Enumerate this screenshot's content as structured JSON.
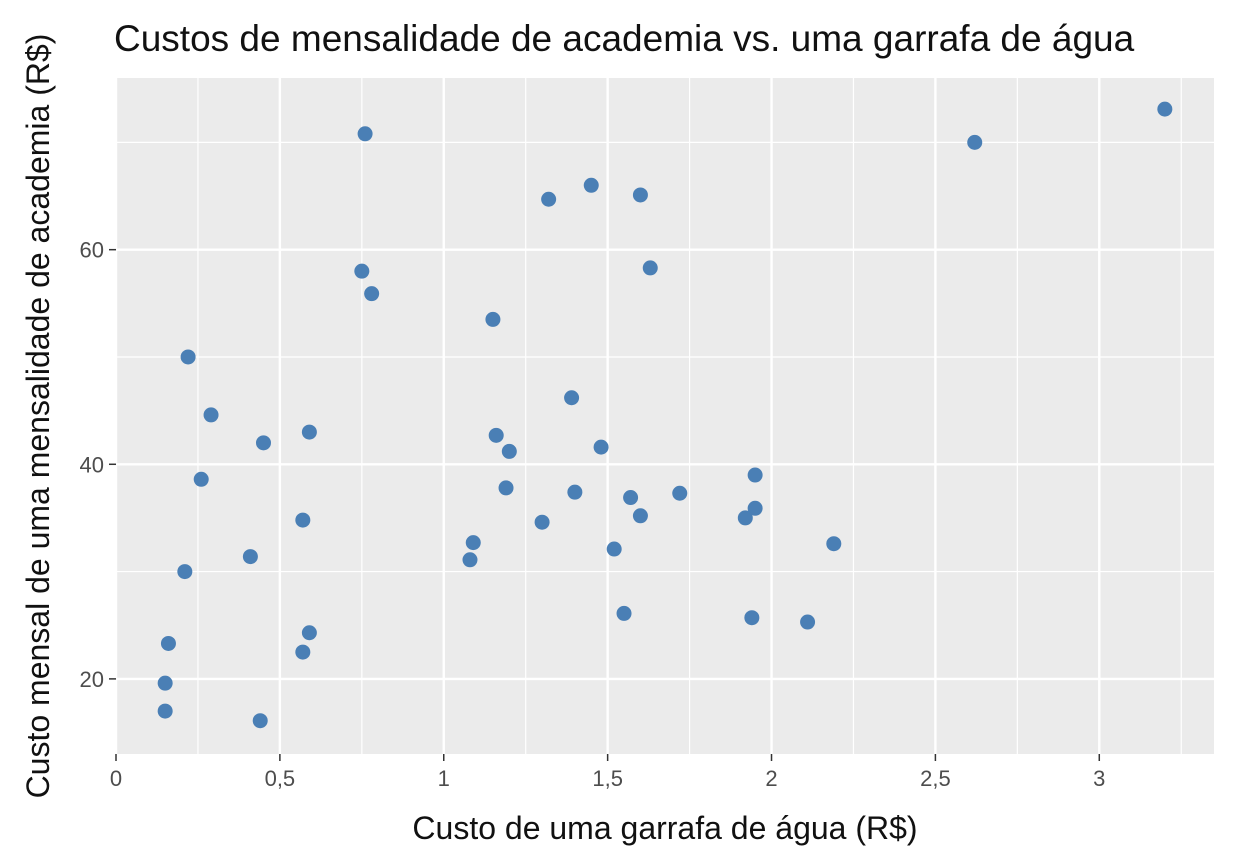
{
  "chart_data": {
    "type": "scatter",
    "title": "Custos de mensalidade de academia vs. uma garrafa de água",
    "xlabel": "Custo de uma garrafa de água (R$)",
    "ylabel": "Custo mensal de uma mensalidade de academia (R$)",
    "xlim": [
      0,
      3.35
    ],
    "ylim": [
      13,
      76
    ],
    "x_ticks": [
      0,
      0.5,
      1,
      1.5,
      2,
      2.5,
      3
    ],
    "x_tick_labels": [
      "0",
      "0,5",
      "1",
      "1,5",
      "2",
      "2,5",
      "3"
    ],
    "y_ticks": [
      20,
      40,
      60
    ],
    "y_tick_labels": [
      "20",
      "40",
      "60"
    ],
    "grid": true,
    "point_color": "#4a7fb5",
    "panel_color": "#ebebeb",
    "points": [
      {
        "x": 0.15,
        "y": 17.0
      },
      {
        "x": 0.15,
        "y": 19.6
      },
      {
        "x": 0.16,
        "y": 23.3
      },
      {
        "x": 0.21,
        "y": 30.0
      },
      {
        "x": 0.22,
        "y": 50.0
      },
      {
        "x": 0.26,
        "y": 38.6
      },
      {
        "x": 0.29,
        "y": 44.6
      },
      {
        "x": 0.41,
        "y": 31.4
      },
      {
        "x": 0.44,
        "y": 16.1
      },
      {
        "x": 0.45,
        "y": 42.0
      },
      {
        "x": 0.57,
        "y": 22.5
      },
      {
        "x": 0.57,
        "y": 34.8
      },
      {
        "x": 0.59,
        "y": 24.3
      },
      {
        "x": 0.59,
        "y": 43.0
      },
      {
        "x": 0.75,
        "y": 58.0
      },
      {
        "x": 0.76,
        "y": 70.8
      },
      {
        "x": 0.78,
        "y": 55.9
      },
      {
        "x": 1.08,
        "y": 31.1
      },
      {
        "x": 1.09,
        "y": 32.7
      },
      {
        "x": 1.15,
        "y": 53.5
      },
      {
        "x": 1.16,
        "y": 42.7
      },
      {
        "x": 1.19,
        "y": 37.8
      },
      {
        "x": 1.2,
        "y": 41.2
      },
      {
        "x": 1.3,
        "y": 34.6
      },
      {
        "x": 1.32,
        "y": 64.7
      },
      {
        "x": 1.39,
        "y": 46.2
      },
      {
        "x": 1.4,
        "y": 37.4
      },
      {
        "x": 1.45,
        "y": 66.0
      },
      {
        "x": 1.48,
        "y": 41.6
      },
      {
        "x": 1.52,
        "y": 32.1
      },
      {
        "x": 1.55,
        "y": 26.1
      },
      {
        "x": 1.57,
        "y": 36.9
      },
      {
        "x": 1.6,
        "y": 35.2
      },
      {
        "x": 1.6,
        "y": 65.1
      },
      {
        "x": 1.63,
        "y": 58.3
      },
      {
        "x": 1.72,
        "y": 37.3
      },
      {
        "x": 1.92,
        "y": 35.0
      },
      {
        "x": 1.94,
        "y": 25.7
      },
      {
        "x": 1.95,
        "y": 39.0
      },
      {
        "x": 1.95,
        "y": 35.9
      },
      {
        "x": 2.11,
        "y": 25.3
      },
      {
        "x": 2.19,
        "y": 32.6
      },
      {
        "x": 2.62,
        "y": 70.0
      },
      {
        "x": 3.2,
        "y": 73.1
      }
    ]
  }
}
